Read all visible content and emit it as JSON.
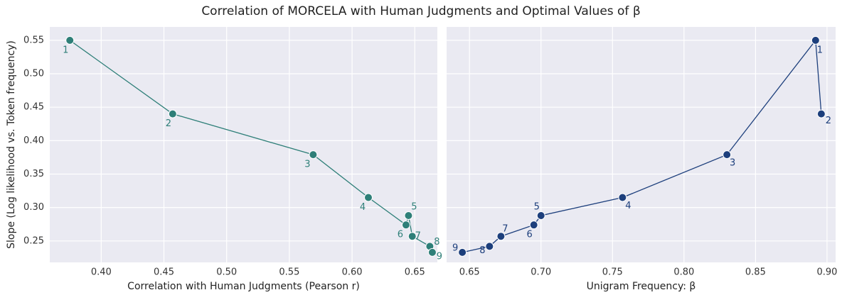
{
  "title": "Correlation of MORCELA with Human Judgments and Optimal Values of β",
  "chart_data": [
    {
      "type": "line",
      "xlabel": "Correlation with Human Judgments (Pearson r)",
      "ylabel": "Slope (Log likelihood vs. Token frequency)",
      "color": "#2e7f78",
      "grid": true,
      "x": [
        0.375,
        0.457,
        0.569,
        0.613,
        0.643,
        0.645,
        0.648,
        0.662,
        0.664
      ],
      "values": [
        0.55,
        0.44,
        0.379,
        0.315,
        0.274,
        0.288,
        0.257,
        0.242,
        0.233
      ],
      "point_labels": [
        "1",
        "2",
        "3",
        "4",
        "6",
        "5",
        "7",
        "8",
        "9"
      ],
      "xlim": [
        0.359,
        0.668
      ],
      "xticks": [
        {
          "value": 0.4,
          "label": "0.40"
        },
        0.45,
        {
          "value": 0.5,
          "label": "0.50"
        },
        0.55,
        {
          "value": 0.6,
          "label": "0.60"
        },
        0.65
      ],
      "ylim": [
        0.218,
        0.57
      ],
      "yticks": [
        0.25,
        {
          "value": 0.3,
          "label": "0.30"
        },
        0.35,
        {
          "value": 0.4,
          "label": "0.40"
        },
        0.45,
        {
          "value": 0.5,
          "label": "0.50"
        },
        0.55
      ]
    },
    {
      "type": "line",
      "xlabel": "Unigram Frequency: β",
      "color": "#1d3f7c",
      "grid": true,
      "x": [
        0.645,
        0.664,
        0.672,
        0.695,
        0.7,
        0.757,
        0.83,
        0.892,
        0.896
      ],
      "values": [
        0.233,
        0.242,
        0.257,
        0.274,
        0.288,
        0.315,
        0.379,
        0.55,
        0.44
      ],
      "point_labels": [
        "9",
        "8",
        "7",
        "6",
        "5",
        "4",
        "3",
        "1",
        "2"
      ],
      "xlim": [
        0.634,
        0.906
      ],
      "xticks": [
        0.65,
        {
          "value": 0.7,
          "label": "0.70"
        },
        0.75,
        {
          "value": 0.8,
          "label": "0.80"
        },
        0.85,
        {
          "value": 0.9,
          "label": "0.90"
        }
      ],
      "ylim": [
        0.218,
        0.57
      ],
      "yticks": [
        0.25,
        0.3,
        0.35,
        0.4,
        0.45,
        0.5,
        0.55
      ]
    }
  ]
}
